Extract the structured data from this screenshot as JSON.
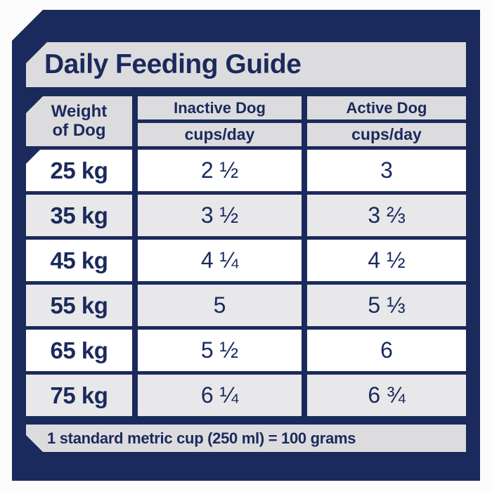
{
  "title": "Daily Feeding Guide",
  "table": {
    "weight_header": "Weight of Dog",
    "columns": [
      {
        "label": "Inactive Dog",
        "unit": "cups/day"
      },
      {
        "label": "Active Dog",
        "unit": "cups/day"
      }
    ],
    "rows": [
      {
        "weight": "25 kg",
        "inactive": "2 ½",
        "active": "3"
      },
      {
        "weight": "35 kg",
        "inactive": "3 ½",
        "active": "3 ⅔"
      },
      {
        "weight": "45 kg",
        "inactive": "4 ¼",
        "active": "4 ½"
      },
      {
        "weight": "55 kg",
        "inactive": "5",
        "active": "5 ⅓"
      },
      {
        "weight": "65 kg",
        "inactive": "5 ½",
        "active": "6"
      },
      {
        "weight": "75 kg",
        "inactive": "6 ¼",
        "active": "6 ¾"
      }
    ]
  },
  "footer_note": "1 standard metric cup (250 ml) = 100 grams",
  "colors": {
    "navy": "#1b2a5c",
    "band_gray": "#dcdcde",
    "row_gray": "#e8e8ea",
    "row_white": "#ffffff",
    "background": "#fcfcfc"
  },
  "chart_data": {
    "type": "table",
    "title": "Daily Feeding Guide",
    "columns": [
      "Weight of Dog",
      "Inactive Dog (cups/day)",
      "Active Dog (cups/day)"
    ],
    "rows": [
      [
        "25 kg",
        "2 1/2",
        "3"
      ],
      [
        "35 kg",
        "3 1/2",
        "3 2/3"
      ],
      [
        "45 kg",
        "4 1/4",
        "4 1/2"
      ],
      [
        "55 kg",
        "5",
        "5 1/3"
      ],
      [
        "65 kg",
        "5 1/2",
        "6"
      ],
      [
        "75 kg",
        "6 1/4",
        "6 3/4"
      ]
    ],
    "weights_kg": [
      25,
      35,
      45,
      55,
      65,
      75
    ],
    "inactive_cups_per_day": [
      2.5,
      3.5,
      4.25,
      5,
      5.5,
      6.25
    ],
    "active_cups_per_day": [
      3,
      3.667,
      4.5,
      5.333,
      6,
      6.75
    ],
    "note": "1 standard metric cup (250 ml) = 100 grams"
  }
}
